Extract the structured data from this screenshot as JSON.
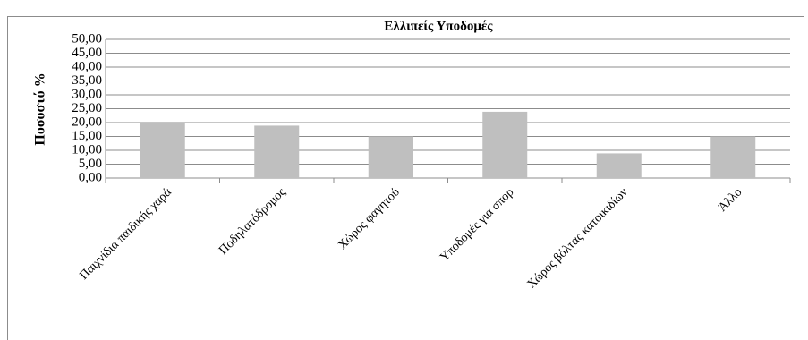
{
  "chart_data": {
    "type": "bar",
    "title": "Ελλιπείς Υποδομές",
    "y_label": "Ποσοστό %",
    "categories": [
      "Παιχνίδια παιδικής χαρά",
      "Ποδηλατόδρομος",
      "Χώρος φαγητού",
      "Υποδομές για σπορ",
      "Χώρος βόλτας κατοικιδίων",
      "Άλλο"
    ],
    "values": [
      19.7,
      18.9,
      15.0,
      23.9,
      8.9,
      15.0
    ],
    "color": "#bfbfbf",
    "ylim": [
      0,
      50
    ],
    "yticks": [
      {
        "value": 0,
        "label": "0,00"
      },
      {
        "value": 5,
        "label": "5,00"
      },
      {
        "value": 10,
        "label": "10,00"
      },
      {
        "value": 15,
        "label": "15,00"
      },
      {
        "value": 20,
        "label": "20,00"
      },
      {
        "value": 25,
        "label": "25,00"
      },
      {
        "value": 30,
        "label": "30,00"
      },
      {
        "value": 35,
        "label": "35,00"
      },
      {
        "value": 40,
        "label": "40,00"
      },
      {
        "value": 45,
        "label": "45,00"
      },
      {
        "value": 50,
        "label": "50,00"
      }
    ],
    "grid": true
  }
}
